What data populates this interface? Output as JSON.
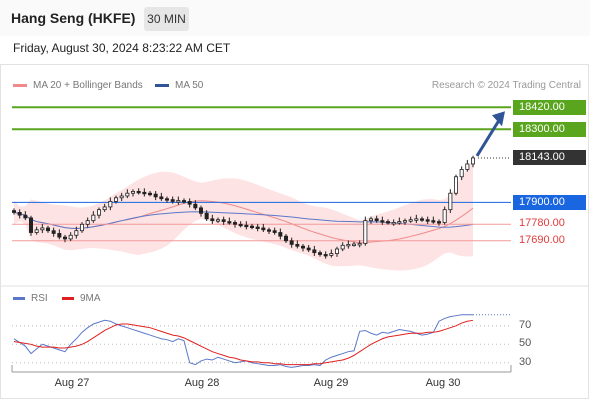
{
  "header": {
    "title": "Hang Seng (HKFE)",
    "timeframe": "30 MIN"
  },
  "date": "Friday, August 30, 2024 8:23:22 AM CET",
  "legend": {
    "ma20": {
      "label": "MA 20 + Bollinger Bands",
      "color": "#f08a8a"
    },
    "ma50": {
      "label": "MA 50",
      "color": "#2f5597"
    }
  },
  "credit": "Research © 2024 Trading Central",
  "rsi_legend": {
    "rsi": {
      "label": "RSI",
      "color": "#5b78c8"
    },
    "ma9": {
      "label": "9MA",
      "color": "#e02020"
    }
  },
  "colors": {
    "target": "#5aa51e",
    "pivot": "#1a66e0",
    "support": "#e23b3b",
    "last": "#333333",
    "arrow": "#2f5597"
  },
  "chart_data": {
    "type": "candlestick",
    "ylim": [
      17530,
      18460
    ],
    "x_ticks": [
      "Aug 27",
      "Aug 28",
      "Aug 29",
      "Aug 30"
    ],
    "levels": [
      {
        "value": 18420,
        "label": "18420.00",
        "kind": "target"
      },
      {
        "value": 18300,
        "label": "18300.00",
        "kind": "target"
      },
      {
        "value": 18143,
        "label": "18143.00",
        "kind": "last"
      },
      {
        "value": 17900,
        "label": "17900.00",
        "kind": "pivot"
      },
      {
        "value": 17780,
        "label": "17780.00",
        "kind": "support"
      },
      {
        "value": 17690,
        "label": "17690.00",
        "kind": "support"
      }
    ],
    "closes": [
      17845,
      17830,
      17815,
      17735,
      17750,
      17760,
      17745,
      17730,
      17710,
      17700,
      17720,
      17745,
      17780,
      17800,
      17830,
      17860,
      17875,
      17905,
      17925,
      17935,
      17950,
      17960,
      17955,
      17950,
      17945,
      17930,
      17920,
      17915,
      17905,
      17910,
      17905,
      17890,
      17870,
      17840,
      17810,
      17800,
      17805,
      17795,
      17790,
      17780,
      17775,
      17770,
      17765,
      17760,
      17750,
      17745,
      17735,
      17715,
      17690,
      17670,
      17660,
      17650,
      17640,
      17625,
      17615,
      17610,
      17620,
      17645,
      17665,
      17670,
      17672,
      17675,
      17800,
      17810,
      17800,
      17795,
      17790,
      17790,
      17795,
      17800,
      17805,
      17810,
      17805,
      17800,
      17795,
      17790,
      17860,
      17950,
      18040,
      18080,
      18110,
      18143
    ],
    "rsi": {
      "ticks": [
        70,
        50,
        30
      ],
      "ylim": [
        20,
        85
      ],
      "rsi": [
        56,
        52,
        48,
        40,
        45,
        50,
        48,
        46,
        44,
        42,
        50,
        56,
        63,
        68,
        72,
        74,
        76,
        75,
        72,
        70,
        68,
        66,
        64,
        62,
        60,
        58,
        56,
        55,
        53,
        56,
        54,
        30,
        28,
        32,
        34,
        33,
        36,
        34,
        32,
        30,
        31,
        32,
        30,
        29,
        28,
        27,
        27,
        28,
        26,
        25,
        26,
        27,
        27,
        28,
        27,
        33,
        36,
        38,
        40,
        42,
        43,
        64,
        65,
        62,
        60,
        63,
        62,
        64,
        66,
        65,
        64,
        62,
        60,
        61,
        63,
        75,
        78,
        80,
        81,
        82,
        82,
        82
      ],
      "ma9": [
        53,
        52,
        51,
        50,
        48,
        47,
        47,
        47,
        46,
        46,
        47,
        48,
        50,
        53,
        57,
        61,
        65,
        68,
        71,
        72,
        72,
        71,
        70,
        69,
        68,
        66,
        64,
        62,
        60,
        59,
        57,
        54,
        51,
        48,
        45,
        42,
        40,
        38,
        36,
        35,
        33,
        32,
        31,
        31,
        30,
        30,
        29,
        29,
        28,
        28,
        28,
        28,
        28,
        29,
        29,
        30,
        31,
        32,
        33,
        35,
        38,
        42,
        46,
        50,
        53,
        56,
        58,
        59,
        60,
        61,
        62,
        62,
        62,
        63,
        63,
        64,
        66,
        68,
        70,
        73,
        75,
        76
      ]
    }
  }
}
